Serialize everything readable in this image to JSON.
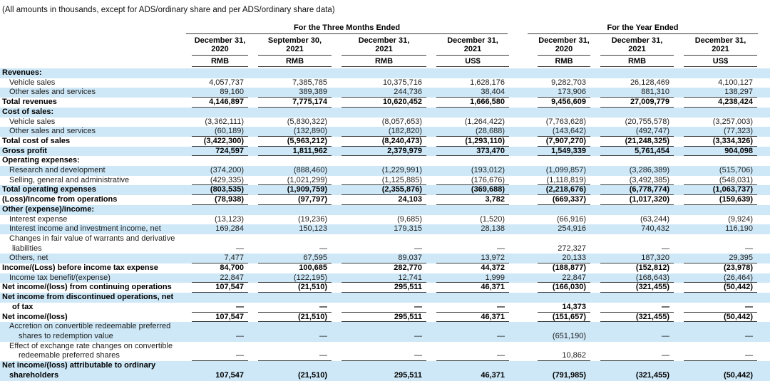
{
  "note": "(All amounts in thousands, except for ADS/ordinary share and per ADS/ordinary share data)",
  "colors": {
    "stripe_blue": "#cee8f7",
    "rule": "#3c3c3c",
    "text": "#1c1c1c"
  },
  "table": {
    "groups": [
      {
        "label": "For the Three Months Ended",
        "span": 4
      },
      {
        "label": "For the Year Ended",
        "span": 3
      }
    ],
    "columns": [
      {
        "date": "December 31,",
        "year": "2020",
        "currency": "RMB"
      },
      {
        "date": "September 30,",
        "year": "2021",
        "currency": "RMB"
      },
      {
        "date": "December 31,",
        "year": "2021",
        "currency": "RMB"
      },
      {
        "date": "December 31,",
        "year": "2021",
        "currency": "US$"
      },
      {
        "date": "December 31,",
        "year": "2020",
        "currency": "RMB"
      },
      {
        "date": "December 31,",
        "year": "2021",
        "currency": "RMB"
      },
      {
        "date": "December 31,",
        "year": "2021",
        "currency": "US$"
      }
    ],
    "rows": [
      {
        "label": "Revenues:",
        "indent": 0,
        "bold": true,
        "bg": "blue",
        "values": []
      },
      {
        "label": "Vehicle sales",
        "indent": 1,
        "bg": "white",
        "values": [
          "4,057,737",
          "7,385,785",
          "10,375,716",
          "1,628,176",
          "9,282,703",
          "26,128,469",
          "4,100,127"
        ]
      },
      {
        "label": "Other sales and services",
        "indent": 1,
        "bg": "blue",
        "u": true,
        "values": [
          "89,160",
          "389,389",
          "244,736",
          "38,404",
          "173,906",
          "881,310",
          "138,297"
        ]
      },
      {
        "label": "Total revenues",
        "indent": 0,
        "bold": true,
        "bg": "white",
        "u": true,
        "values": [
          "4,146,897",
          "7,775,174",
          "10,620,452",
          "1,666,580",
          "9,456,609",
          "27,009,779",
          "4,238,424"
        ]
      },
      {
        "label": "Cost of sales:",
        "indent": 0,
        "bold": true,
        "bg": "blue",
        "values": []
      },
      {
        "label": "Vehicle sales",
        "indent": 1,
        "bg": "white",
        "values": [
          "(3,362,111)",
          "(5,830,322)",
          "(8,057,653)",
          "(1,264,422)",
          "(7,763,628)",
          "(20,755,578)",
          "(3,257,003)"
        ]
      },
      {
        "label": "Other sales and services",
        "indent": 1,
        "bg": "blue",
        "u": true,
        "values": [
          "(60,189)",
          "(132,890)",
          "(182,820)",
          "(28,688)",
          "(143,642)",
          "(492,747)",
          "(77,323)"
        ]
      },
      {
        "label": "Total cost of sales",
        "indent": 0,
        "bold": true,
        "bg": "white",
        "u": true,
        "values": [
          "(3,422,300)",
          "(5,963,212)",
          "(8,240,473)",
          "(1,293,110)",
          "(7,907,270)",
          "(21,248,325)",
          "(3,334,326)"
        ]
      },
      {
        "label": "Gross profit",
        "indent": 0,
        "bold": true,
        "bg": "blue",
        "u": true,
        "values": [
          "724,597",
          "1,811,962",
          "2,379,979",
          "373,470",
          "1,549,339",
          "5,761,454",
          "904,098"
        ]
      },
      {
        "label": "Operating expenses:",
        "indent": 0,
        "bold": true,
        "bg": "white",
        "values": []
      },
      {
        "label": "Research and development",
        "indent": 1,
        "bg": "blue",
        "values": [
          "(374,200)",
          "(888,460)",
          "(1,229,991)",
          "(193,012)",
          "(1,099,857)",
          "(3,286,389)",
          "(515,706)"
        ]
      },
      {
        "label": "Selling, general and administrative",
        "indent": 1,
        "bg": "white",
        "u": true,
        "values": [
          "(429,335)",
          "(1,021,299)",
          "(1,125,885)",
          "(176,676)",
          "(1,118,819)",
          "(3,492,385)",
          "(548,031)"
        ]
      },
      {
        "label": "Total operating expenses",
        "indent": 0,
        "bold": true,
        "bg": "blue",
        "u": true,
        "values": [
          "(803,535)",
          "(1,909,759)",
          "(2,355,876)",
          "(369,688)",
          "(2,218,676)",
          "(6,778,774)",
          "(1,063,737)"
        ]
      },
      {
        "label": "(Loss)/Income from operations",
        "indent": 0,
        "bold": true,
        "bg": "white",
        "u": true,
        "values": [
          "(78,938)",
          "(97,797)",
          "24,103",
          "3,782",
          "(669,337)",
          "(1,017,320)",
          "(159,639)"
        ]
      },
      {
        "label": "Other (expense)/income:",
        "indent": 0,
        "bold": true,
        "bg": "blue",
        "values": []
      },
      {
        "label": "Interest expense",
        "indent": 1,
        "bg": "white",
        "values": [
          "(13,123)",
          "(19,236)",
          "(9,685)",
          "(1,520)",
          "(66,916)",
          "(63,244)",
          "(9,924)"
        ]
      },
      {
        "label": "Interest income and investment income, net",
        "indent": 1,
        "bg": "blue",
        "values": [
          "169,284",
          "150,123",
          "179,315",
          "28,138",
          "254,916",
          "740,432",
          "116,190"
        ]
      },
      {
        "label": "Changes in fair value of warrants and derivative",
        "indent": 1,
        "bg": "white",
        "values": []
      },
      {
        "label": "liabilities",
        "indent": 2,
        "bg": "white",
        "values": [
          "—",
          "—",
          "—",
          "—",
          "272,327",
          "—",
          "—"
        ]
      },
      {
        "label": "Others, net",
        "indent": 1,
        "bg": "blue",
        "u": true,
        "values": [
          "7,477",
          "67,595",
          "89,037",
          "13,972",
          "20,133",
          "187,320",
          "29,395"
        ]
      },
      {
        "label": "Income/(Loss) before income tax expense",
        "indent": 0,
        "bold": true,
        "bg": "white",
        "values": [
          "84,700",
          "100,685",
          "282,770",
          "44,372",
          "(188,877)",
          "(152,812)",
          "(23,978)"
        ]
      },
      {
        "label": "Income tax benefit/(expense)",
        "indent": 1,
        "bg": "blue",
        "u": true,
        "values": [
          "22,847",
          "(122,195)",
          "12,741",
          "1,999",
          "22,847",
          "(168,643)",
          "(26,464)"
        ]
      },
      {
        "label": "Net income/(loss) from continuing operations",
        "indent": 0,
        "bold": true,
        "bg": "white",
        "u": true,
        "values": [
          "107,547",
          "(21,510)",
          "295,511",
          "46,371",
          "(166,030)",
          "(321,455)",
          "(50,442)"
        ]
      },
      {
        "label": "Net income from discontinued operations, net",
        "indent": 0,
        "bold": true,
        "bg": "blue",
        "values": []
      },
      {
        "label": "of tax",
        "indent": 2,
        "bold": true,
        "bg": "white",
        "u": true,
        "values": [
          "—",
          "—",
          "—",
          "—",
          "14,373",
          "—",
          "—"
        ]
      },
      {
        "label": "Net income/(loss)",
        "indent": 0,
        "bold": true,
        "bg": "white",
        "u": true,
        "values": [
          "107,547",
          "(21,510)",
          "295,511",
          "46,371",
          "(151,657)",
          "(321,455)",
          "(50,442)"
        ]
      },
      {
        "label": "Accretion on convertible redeemable preferred",
        "indent": 1,
        "bg": "blue",
        "values": []
      },
      {
        "label": "shares to redemption value",
        "indent": 3,
        "bg": "blue",
        "values": [
          "—",
          "—",
          "—",
          "—",
          "(651,190)",
          "—",
          "—"
        ]
      },
      {
        "label": "Effect of exchange rate changes on convertible",
        "indent": 1,
        "bg": "white",
        "values": []
      },
      {
        "label": "redeemable preferred shares",
        "indent": 3,
        "bg": "white",
        "u": true,
        "values": [
          "—",
          "—",
          "—",
          "—",
          "10,862",
          "—",
          "—"
        ]
      },
      {
        "label": "Net income/(loss) attributable to ordinary",
        "indent": 0,
        "bold": true,
        "bg": "blue",
        "values": []
      },
      {
        "label": "shareholders",
        "indent": 1,
        "bold": true,
        "bg": "blue",
        "values": [
          "107,547",
          "(21,510)",
          "295,511",
          "46,371",
          "(791,985)",
          "(321,455)",
          "(50,442)"
        ]
      }
    ]
  }
}
